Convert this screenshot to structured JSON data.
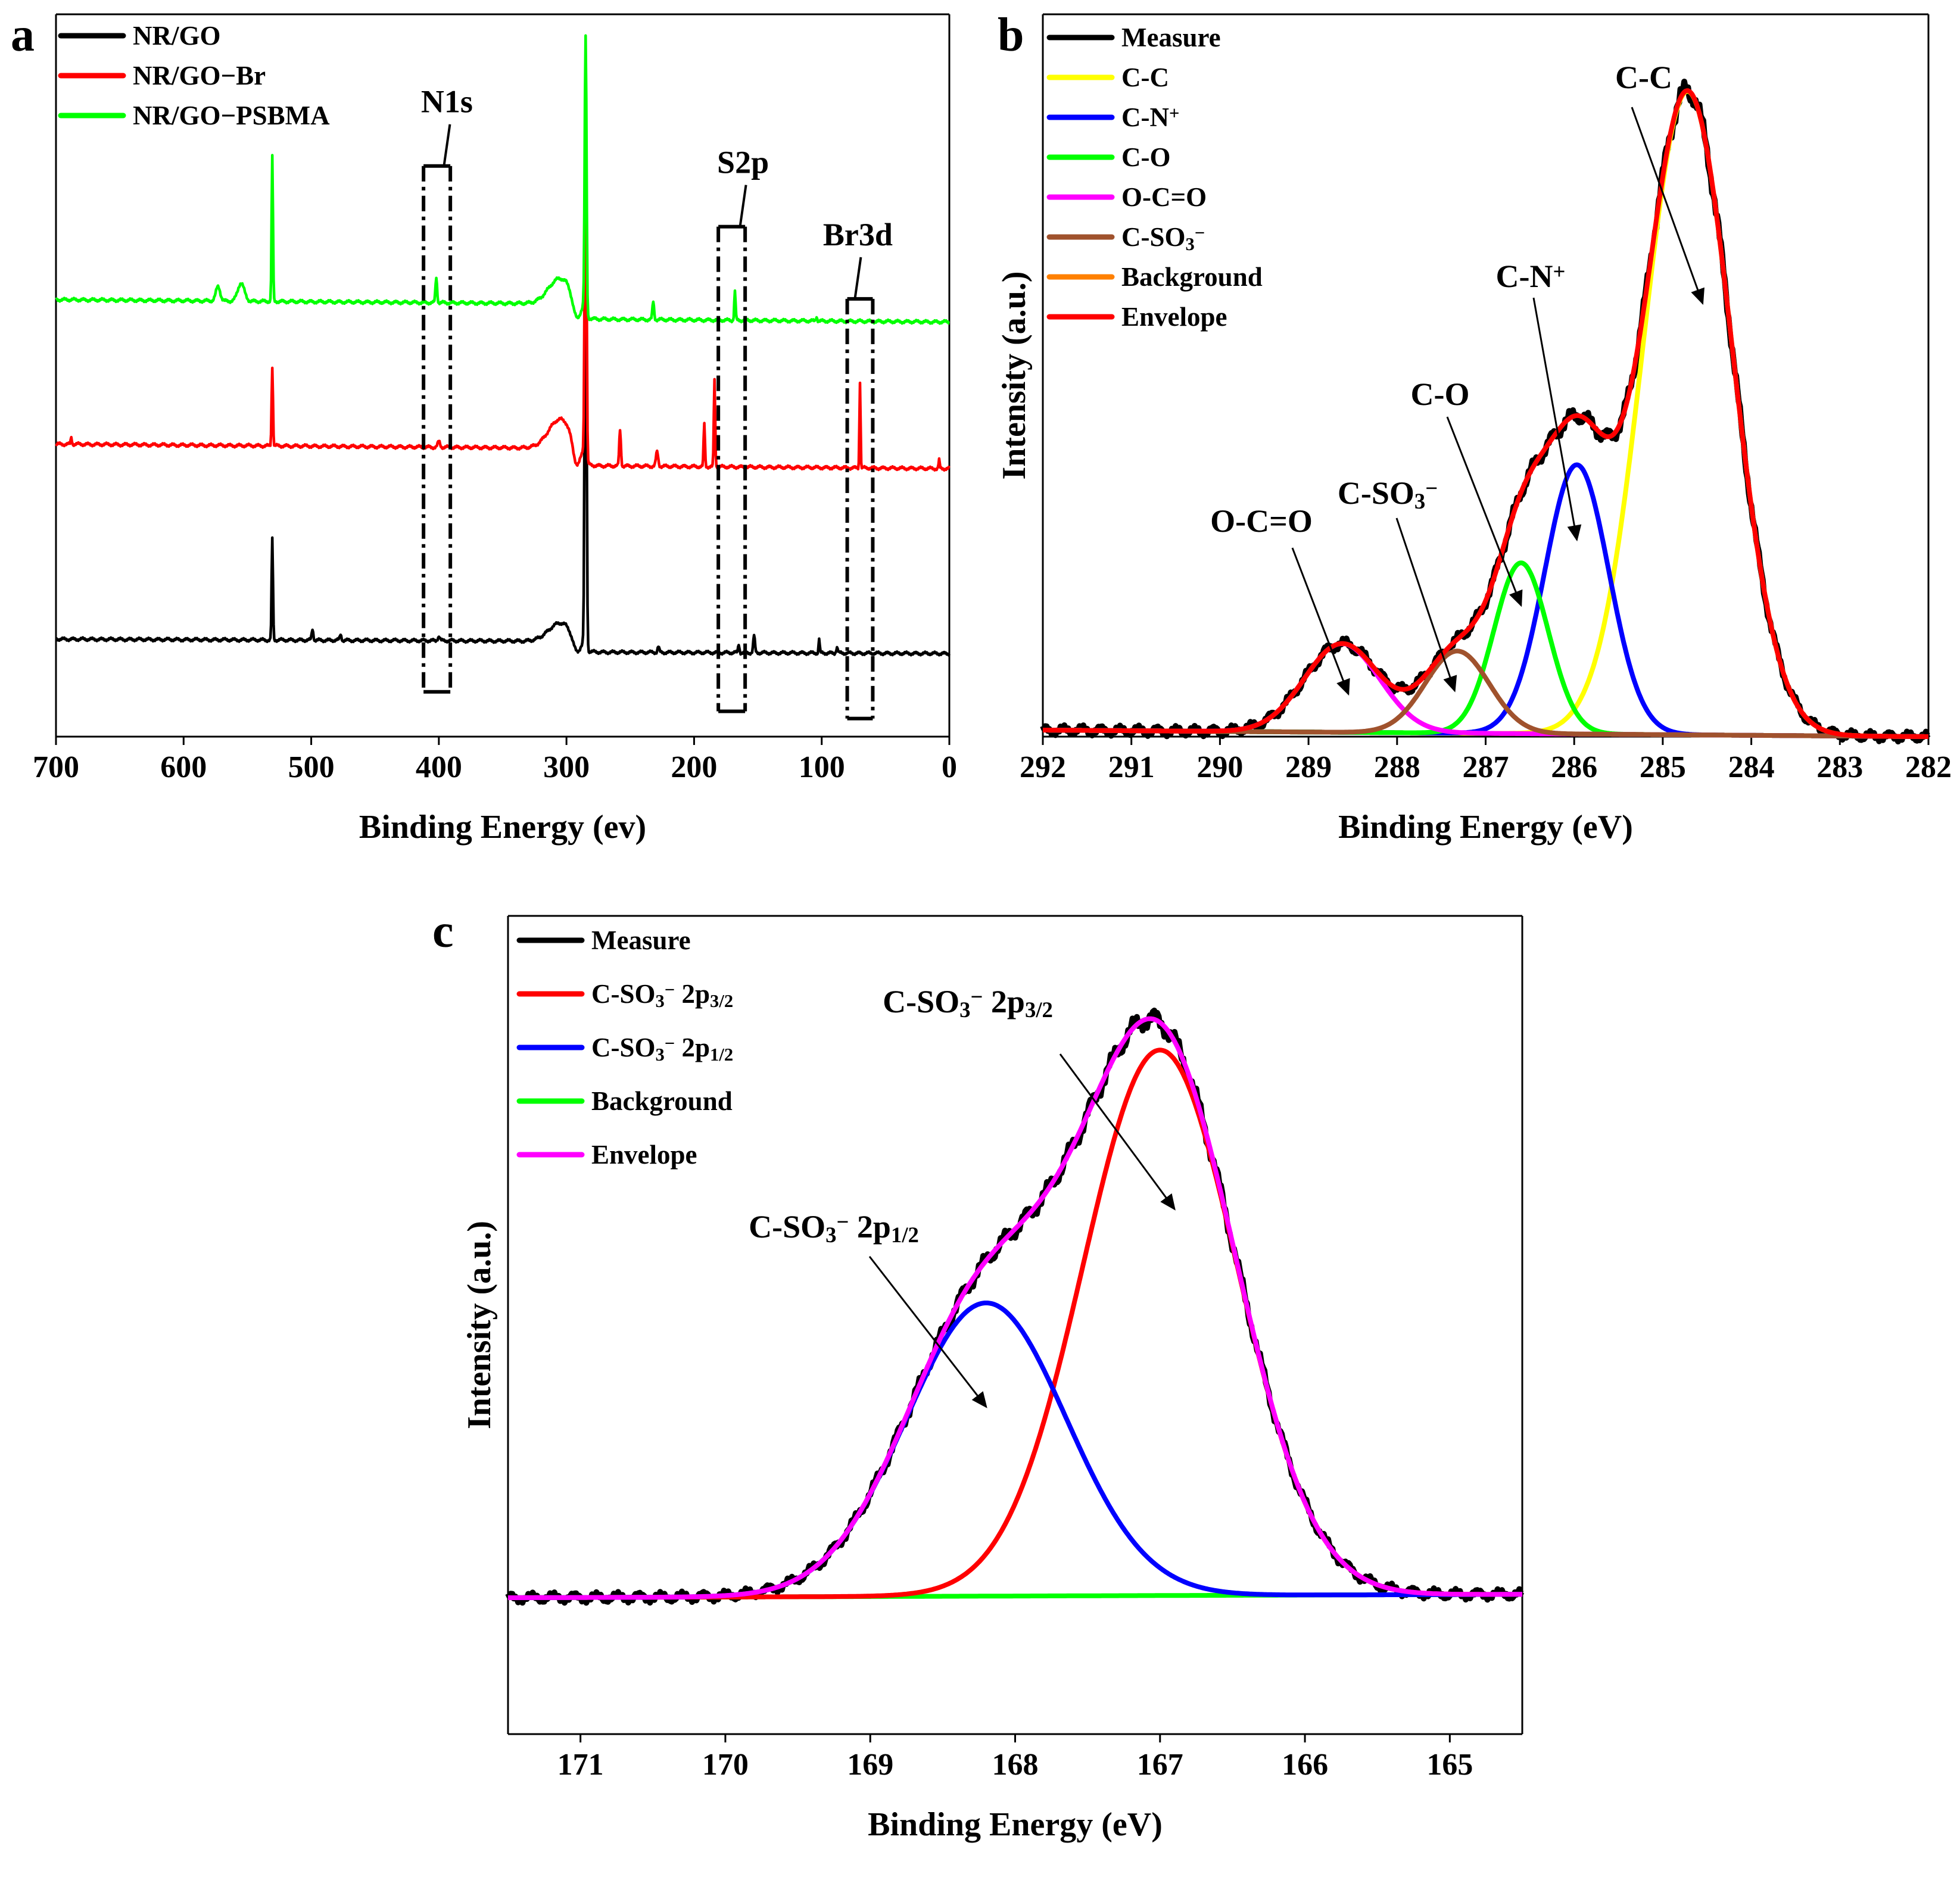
{
  "panels": [
    {
      "label": "a"
    },
    {
      "label": "b"
    },
    {
      "label": "c"
    }
  ],
  "chart_data": [
    {
      "panel": "a",
      "type": "line",
      "title": "",
      "xlabel": "Binding Energy (ev)",
      "ylabel": "",
      "xlim": [
        700,
        0
      ],
      "xticks": [
        700,
        600,
        500,
        400,
        300,
        200,
        100,
        0
      ],
      "ylim": [
        0,
        1
      ],
      "legend_position": "top-left",
      "series": [
        {
          "name": "NR/GO",
          "color": "#000000",
          "baseline": 0.135,
          "slope": -0.05,
          "bump300": 0.025,
          "peaks": [
            [
              530.5,
              0.14,
              1.2
            ],
            [
              499,
              0.015,
              1.5
            ],
            [
              477,
              0.008,
              1.5
            ],
            [
              400,
              0.006,
              2
            ],
            [
              285,
              0.74,
              1.6
            ],
            [
              228,
              0.008,
              1.5
            ],
            [
              165,
              0.012,
              1.2
            ],
            [
              153,
              0.024,
              1.5
            ],
            [
              102,
              0.02,
              1
            ],
            [
              88,
              0.008,
              1.5
            ]
          ]
        },
        {
          "name": "NR/GO−Br",
          "color": "#ff0000",
          "baseline": 0.405,
          "slope": -0.1,
          "bump300": 0.04,
          "peaks": [
            [
              688,
              0.01,
              1
            ],
            [
              530.5,
              0.11,
              1.2
            ],
            [
              400,
              0.008,
              2
            ],
            [
              285,
              0.52,
              1.6
            ],
            [
              258,
              0.05,
              1.5
            ],
            [
              229,
              0.02,
              2
            ],
            [
              192,
              0.06,
              1.2
            ],
            [
              184,
              0.12,
              1.2
            ],
            [
              70,
              0.12,
              1
            ],
            [
              8,
              0.012,
              1
            ]
          ]
        },
        {
          "name": "NR/GO−PSBMA",
          "color": "#00ff00",
          "baseline": 0.605,
          "slope": -0.1,
          "bump300": 0.035,
          "peaks": [
            [
              573,
              0.02,
              4
            ],
            [
              555,
              0.025,
              6
            ],
            [
              530.5,
              0.2,
              1.2
            ],
            [
              402,
              0.035,
              1.5
            ],
            [
              285,
              0.37,
              1.6
            ],
            [
              232,
              0.025,
              1.5
            ],
            [
              168,
              0.04,
              1.2
            ],
            [
              104,
              0.006,
              1.2
            ]
          ]
        }
      ],
      "annotations": [
        {
          "text": "N1s",
          "box_x": [
            412,
            391
          ],
          "box_y": [
            0.062,
            0.79
          ],
          "arrow_to_x": 396
        },
        {
          "text": "S2p",
          "box_x": [
            181,
            160
          ],
          "box_y": [
            0.035,
            0.706
          ],
          "arrow_to_x": 164
        },
        {
          "text": "Br3d",
          "box_x": [
            80,
            60
          ],
          "box_y": [
            0.025,
            0.606
          ],
          "arrow_to_x": 74
        }
      ]
    },
    {
      "panel": "b",
      "type": "line",
      "title": "",
      "xlabel": "Binding Energy (eV)",
      "ylabel": "Intensity (a.u.)",
      "xlim": [
        292,
        282
      ],
      "xticks": [
        292,
        291,
        290,
        289,
        288,
        287,
        286,
        285,
        284,
        283,
        282
      ],
      "ylim": [
        0,
        1.1
      ],
      "legend_position": "top-left",
      "background": {
        "start": 0.01,
        "end": 0.0
      },
      "series": [
        {
          "name": "Measure",
          "color": "#000000",
          "role": "measure"
        },
        {
          "name": "C-C",
          "color": "#ffff00",
          "center": 284.72,
          "height": 0.98,
          "fwhm": 1.18
        },
        {
          "name": "C-N+",
          "color": "#0000ff",
          "center": 285.97,
          "height": 0.41,
          "fwhm": 0.85
        },
        {
          "name": "C-O",
          "color": "#00ff00",
          "center": 286.6,
          "height": 0.26,
          "fwhm": 0.72
        },
        {
          "name": "O-C=O",
          "color": "#ff00ff",
          "center": 288.62,
          "height": 0.135,
          "fwhm": 1.0
        },
        {
          "name": "C-SO3−",
          "color": "#a0522d",
          "center": 287.32,
          "height": 0.125,
          "fwhm": 0.85
        },
        {
          "name": "Background",
          "color": "#ff8000",
          "role": "background"
        },
        {
          "name": "Envelope",
          "color": "#ff0000",
          "role": "envelope"
        }
      ],
      "annotations": [
        {
          "text": "C-C",
          "tip": [
            284.55,
            0.66
          ]
        },
        {
          "text": "C-N+",
          "tip": [
            285.97,
            0.3
          ]
        },
        {
          "text": "C-O",
          "tip": [
            286.6,
            0.2
          ]
        },
        {
          "text": "C-SO3−",
          "tip": [
            287.35,
            0.07
          ]
        },
        {
          "text": "O-C=O",
          "tip": [
            288.55,
            0.065
          ]
        }
      ]
    },
    {
      "panel": "c",
      "type": "line",
      "title": "",
      "xlabel": "Binding Energy (eV)",
      "ylabel": "Intensity (a.u.)",
      "xlim": [
        171.5,
        164.5
      ],
      "xticks": [
        171,
        170,
        169,
        168,
        167,
        166,
        165
      ],
      "ylim": [
        -0.2,
        1.0
      ],
      "legend_position": "top-left",
      "background": {
        "start": 0.0,
        "end": 0.005
      },
      "series": [
        {
          "name": "Measure",
          "color": "#000000",
          "role": "measure"
        },
        {
          "name": "C-SO3− 2p3/2",
          "color": "#ff0000",
          "center": 167.0,
          "height": 0.8,
          "fwhm": 1.25
        },
        {
          "name": "C-SO3− 2p1/2",
          "color": "#0000ff",
          "center": 168.2,
          "height": 0.43,
          "fwhm": 1.3
        },
        {
          "name": "Background",
          "color": "#00ff00",
          "role": "background"
        },
        {
          "name": "Envelope",
          "color": "#ff00ff",
          "role": "envelope"
        }
      ],
      "annotations": [
        {
          "text": "C-SO3− 2p3/2",
          "tip": [
            166.9,
            0.57
          ]
        },
        {
          "text": "C-SO3− 2p1/2",
          "tip": [
            168.2,
            0.28
          ]
        }
      ]
    }
  ]
}
